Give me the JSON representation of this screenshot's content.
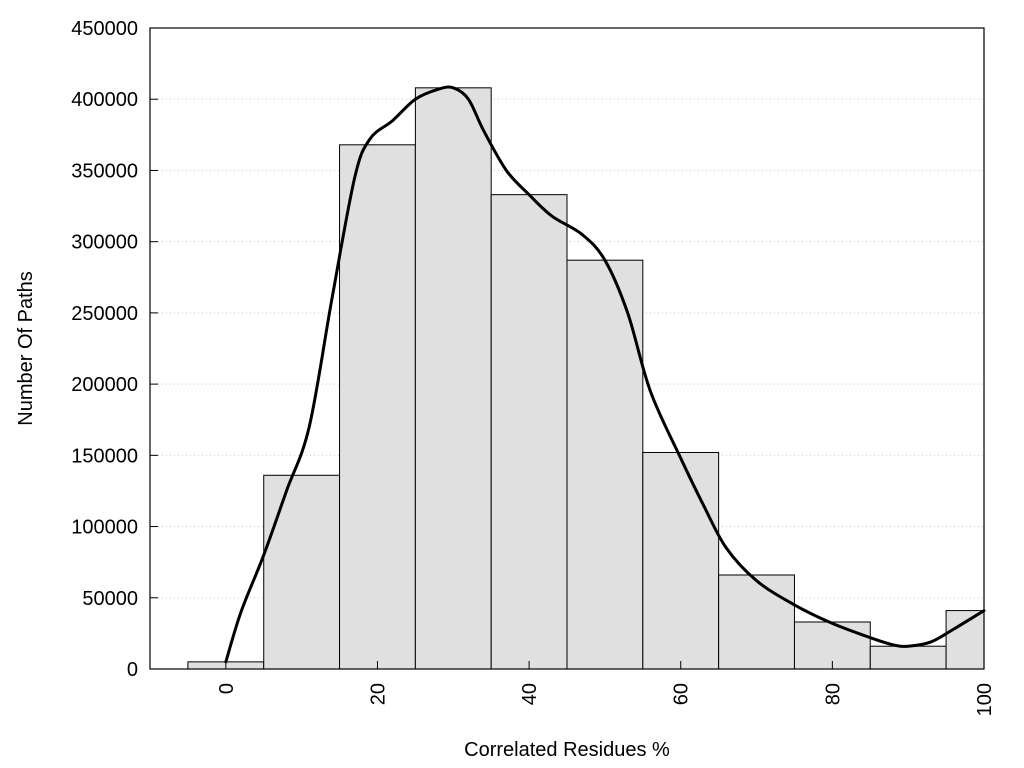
{
  "chart_data": {
    "type": "bar",
    "title": "",
    "xlabel": "Correlated Residues %",
    "ylabel": "Number Of Paths",
    "x_range": [
      -10,
      100
    ],
    "ylim": [
      0,
      450000
    ],
    "grid": "y-dotted",
    "legend": "none",
    "bin_width": 10,
    "x_ticks": [
      0,
      20,
      40,
      60,
      80,
      100
    ],
    "y_ticks": [
      0,
      50000,
      100000,
      150000,
      200000,
      250000,
      300000,
      350000,
      400000,
      450000
    ],
    "bars": [
      {
        "x": 0,
        "value": 5000
      },
      {
        "x": 10,
        "value": 136000
      },
      {
        "x": 20,
        "value": 368000
      },
      {
        "x": 30,
        "value": 408000
      },
      {
        "x": 40,
        "value": 333000
      },
      {
        "x": 50,
        "value": 287000
      },
      {
        "x": 60,
        "value": 152000
      },
      {
        "x": 70,
        "value": 66000
      },
      {
        "x": 80,
        "value": 33000
      },
      {
        "x": 90,
        "value": 16000
      },
      {
        "x": 100,
        "value": 41000
      }
    ],
    "density_curve": [
      [
        0,
        5000
      ],
      [
        2,
        40000
      ],
      [
        5,
        80000
      ],
      [
        8,
        125000
      ],
      [
        11,
        170000
      ],
      [
        14,
        260000
      ],
      [
        17,
        345000
      ],
      [
        19,
        372000
      ],
      [
        22,
        385000
      ],
      [
        25,
        400000
      ],
      [
        28,
        407000
      ],
      [
        30,
        408000
      ],
      [
        32,
        400000
      ],
      [
        34,
        378000
      ],
      [
        37,
        350000
      ],
      [
        40,
        333000
      ],
      [
        43,
        318000
      ],
      [
        47,
        305000
      ],
      [
        50,
        287000
      ],
      [
        53,
        250000
      ],
      [
        56,
        195000
      ],
      [
        60,
        148000
      ],
      [
        63,
        115000
      ],
      [
        66,
        85000
      ],
      [
        70,
        62000
      ],
      [
        75,
        45000
      ],
      [
        80,
        32000
      ],
      [
        85,
        22000
      ],
      [
        88,
        17000
      ],
      [
        90,
        16000
      ],
      [
        93,
        19000
      ],
      [
        96,
        28000
      ],
      [
        100,
        41000
      ]
    ],
    "colors": {
      "bar_fill": "#e0e0e0",
      "bar_stroke": "#000000",
      "curve": "#000000",
      "grid": "#c8c8c8"
    }
  }
}
